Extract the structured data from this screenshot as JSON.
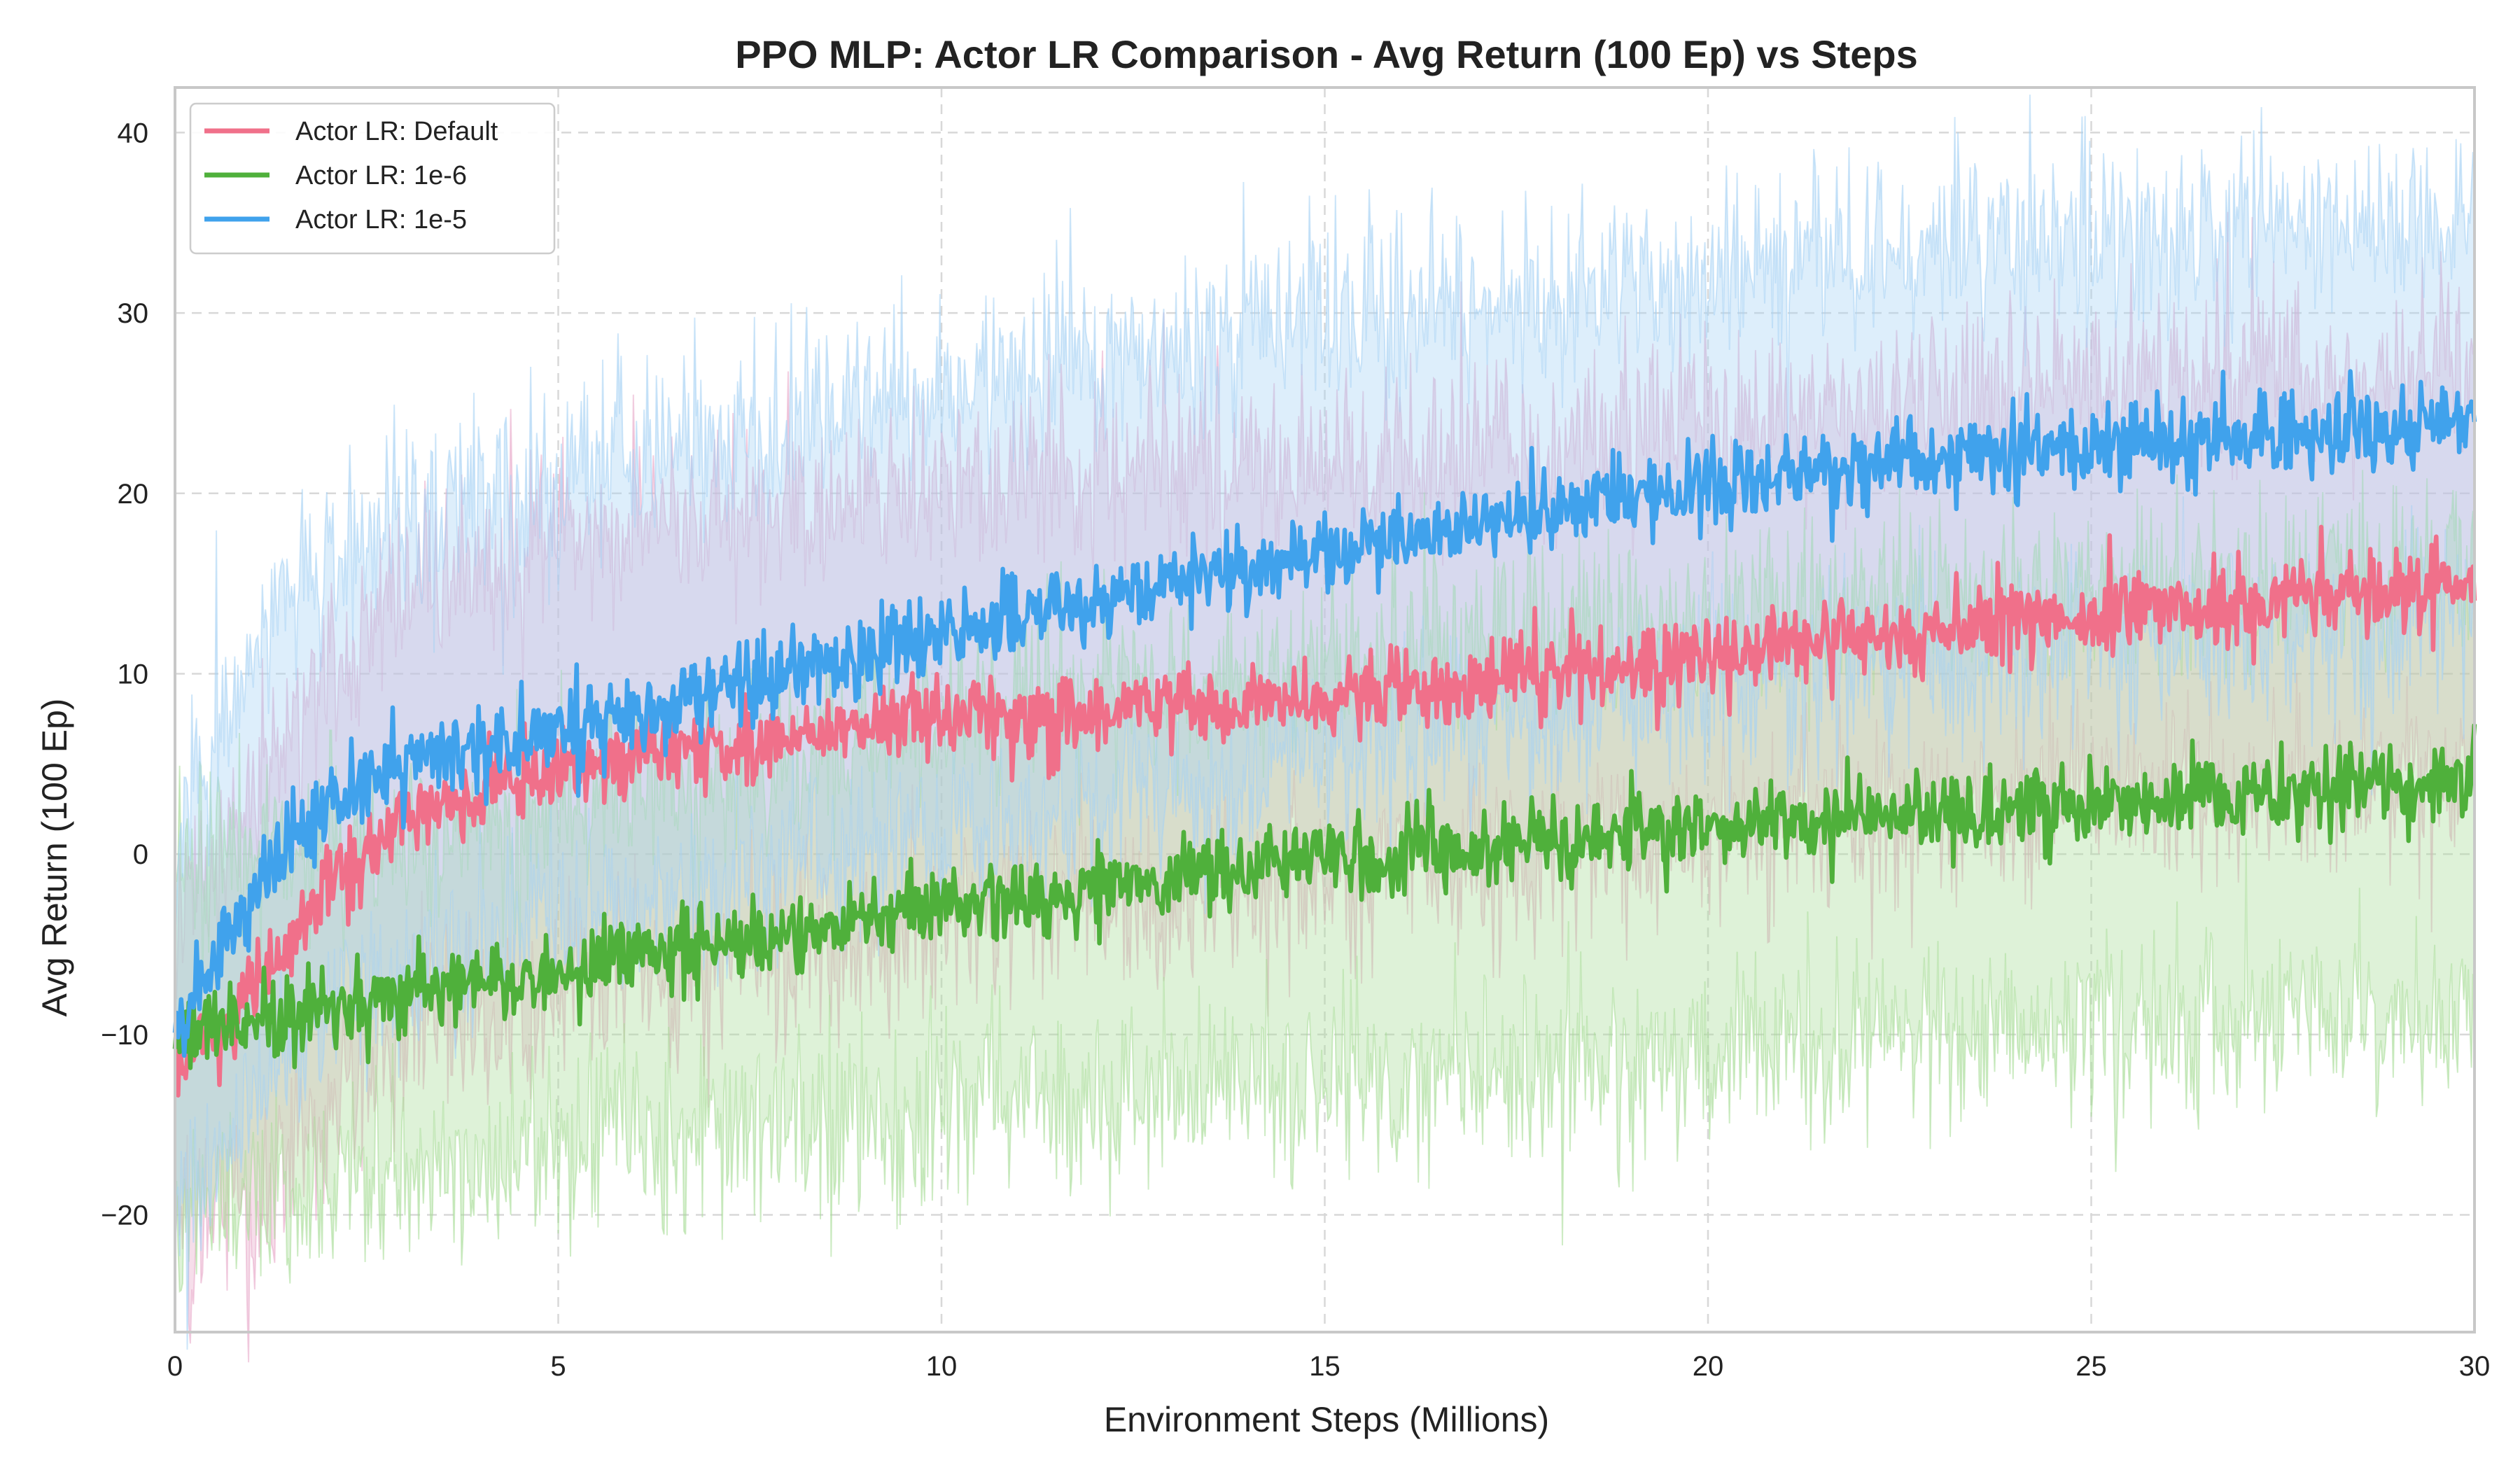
{
  "chart_data": {
    "type": "line",
    "title": "PPO MLP: Actor LR Comparison - Avg Return (100 Ep) vs Steps",
    "xlabel": "Environment Steps (Millions)",
    "ylabel": "Avg Return (100 Ep)",
    "xlim": [
      0,
      30
    ],
    "ylim": [
      -26.5,
      42.5
    ],
    "xticks": [
      "0",
      "5",
      "10",
      "15",
      "20",
      "25",
      "30"
    ],
    "yticks": [
      "−20",
      "−10",
      "0",
      "10",
      "20",
      "30",
      "40"
    ],
    "grid": true,
    "legend_position": "top-left",
    "series": [
      {
        "name": "Actor LR: Default",
        "color": "#f0708a",
        "band_color": "#e8a8c8",
        "x": [
          0,
          0.5,
          1,
          1.5,
          2,
          2.5,
          3,
          4,
          5,
          6,
          7,
          8,
          9,
          10,
          12,
          14,
          16,
          18,
          20,
          22,
          24,
          26,
          28,
          30
        ],
        "mean": [
          -11,
          -10,
          -8,
          -5,
          -2,
          0,
          2,
          3.5,
          4.5,
          5.5,
          6,
          6.5,
          7,
          7.5,
          8,
          8.5,
          9,
          10,
          11,
          12,
          13,
          13.5,
          14.5,
          15
        ],
        "lower": [
          -21,
          -20,
          -19,
          -17,
          -14,
          -12,
          -10,
          -9,
          -8,
          -7,
          -6.5,
          -6,
          -5,
          -4,
          -3,
          -2,
          -1,
          0,
          1,
          2,
          3,
          3,
          3.5,
          4
        ],
        "upper": [
          -4,
          0,
          3,
          7,
          10,
          13,
          15,
          16.5,
          17.5,
          18.5,
          19,
          19.5,
          20,
          20.5,
          21,
          21.5,
          22,
          23,
          24,
          25,
          26,
          26.5,
          27,
          27.5
        ]
      },
      {
        "name": "Actor LR: 1e-6",
        "color": "#4fb03b",
        "band_color": "#a8dc98",
        "x": [
          0,
          1,
          2,
          3,
          4,
          5,
          6,
          7,
          8,
          9,
          10,
          12,
          14,
          16,
          18,
          20,
          22,
          24,
          26,
          28,
          30
        ],
        "mean": [
          -10,
          -9.5,
          -8.5,
          -7.5,
          -7,
          -6.5,
          -5.5,
          -5,
          -4.5,
          -3.5,
          -3,
          -2,
          -1,
          0,
          0.5,
          1.5,
          2,
          2.5,
          3,
          3.5,
          4
        ],
        "lower": [
          -19,
          -19,
          -18,
          -17.5,
          -17,
          -16.5,
          -16,
          -15.5,
          -15,
          -14.5,
          -14,
          -13.5,
          -13,
          -12.5,
          -12,
          -11,
          -10.5,
          -10,
          -9.5,
          -9,
          -8.5
        ],
        "upper": [
          0,
          0,
          0.5,
          1,
          1.5,
          2.5,
          3.5,
          4.5,
          5.5,
          6.5,
          7.5,
          9,
          10,
          11,
          12,
          13,
          14,
          14.5,
          15,
          15.5,
          16
        ]
      },
      {
        "name": "Actor LR: 1e-5",
        "color": "#40a2ec",
        "band_color": "#a6d2f4",
        "x": [
          0,
          0.5,
          1,
          1.5,
          2,
          2.5,
          3,
          4,
          5,
          6,
          7,
          8,
          9,
          10,
          12,
          14,
          16,
          18,
          20,
          22,
          24,
          26,
          28,
          30
        ],
        "mean": [
          -10,
          -6,
          -2,
          0.5,
          2.5,
          4,
          5,
          6,
          7,
          8,
          9,
          10,
          11,
          12,
          14,
          15.5,
          17.5,
          19,
          20.5,
          21.5,
          22.5,
          23,
          23.5,
          24
        ],
        "lower": [
          -20,
          -18,
          -14,
          -11,
          -9,
          -7.5,
          -6.5,
          -5,
          -4,
          -3,
          -2,
          -1,
          0,
          1,
          2.5,
          4,
          6,
          7.5,
          9,
          10,
          11,
          11.5,
          12,
          12.5
        ],
        "upper": [
          -1,
          6,
          11,
          14,
          16,
          17.5,
          18.5,
          20,
          21,
          22,
          23,
          24,
          25,
          26,
          27.5,
          29,
          30,
          31,
          32,
          33,
          34,
          34.5,
          35,
          35.5
        ]
      }
    ]
  }
}
